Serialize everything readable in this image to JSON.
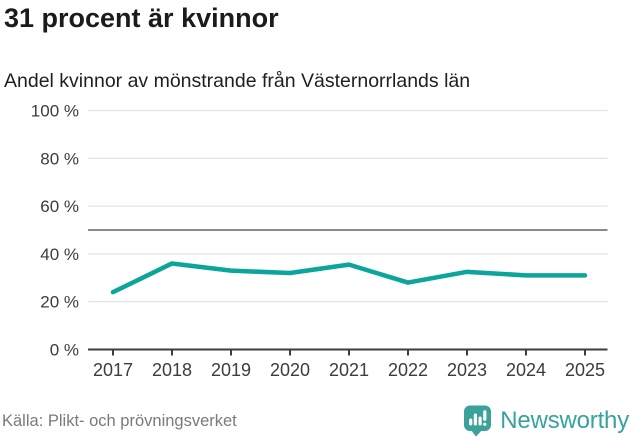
{
  "chart_data": {
    "type": "line",
    "title": "31 procent är kvinnor",
    "subtitle": "Andel kvinnor av mönstrande från Västernorrlands län",
    "categories": [
      "2017",
      "2018",
      "2019",
      "2020",
      "2021",
      "2022",
      "2023",
      "2024",
      "2025"
    ],
    "series": [
      {
        "name": "Andel kvinnor av mönstrande",
        "values": [
          24,
          36,
          33,
          32,
          35.5,
          28,
          32.5,
          31,
          31
        ]
      }
    ],
    "xlabel": "",
    "ylabel": "",
    "ylim": [
      0,
      100
    ],
    "y_ticks": [
      0,
      20,
      40,
      60,
      80,
      100
    ],
    "y_tick_labels": [
      "0 %",
      "20 %",
      "40 %",
      "60 %",
      "80 %",
      "100 %"
    ],
    "reference_line": 50,
    "grid": true,
    "legend_position": "none",
    "colors": {
      "line": "#0ba59b",
      "grid": "#e4e4e4",
      "reference": "#8a8a8a",
      "axis": "#3d3d3d",
      "axis_text": "#3c3c3c"
    }
  },
  "footer": {
    "source": "Källa: Plikt- och prövningsverket",
    "brand": "Newsworthy",
    "brand_color": "#36a39d",
    "brand_icon": "bar-chart-speech-bubble"
  }
}
